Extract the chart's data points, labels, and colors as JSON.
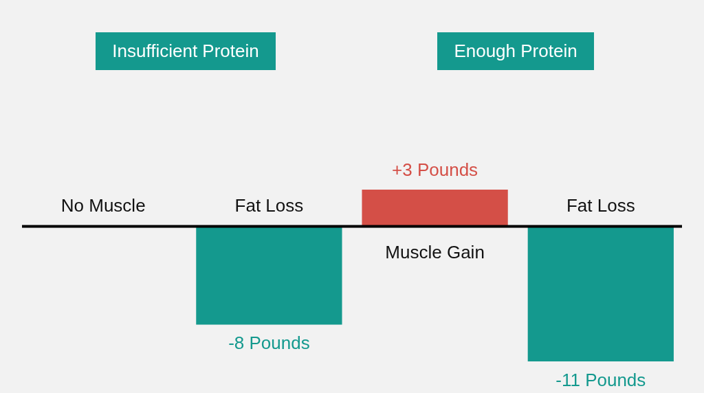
{
  "chart_data": {
    "type": "bar",
    "categories": [
      "No Muscle",
      "Fat Loss",
      "Muscle Gain",
      "Fat Loss"
    ],
    "values": [
      0,
      -8,
      3,
      -11
    ],
    "colors": [
      "#14998e",
      "#14998e",
      "#d44f47",
      "#14998e"
    ],
    "value_labels": [
      null,
      "-8 Pounds",
      "+3 Pounds",
      "-11 Pounds"
    ],
    "annotations": [
      "Insufficient Protein",
      "Enough Protein"
    ]
  }
}
